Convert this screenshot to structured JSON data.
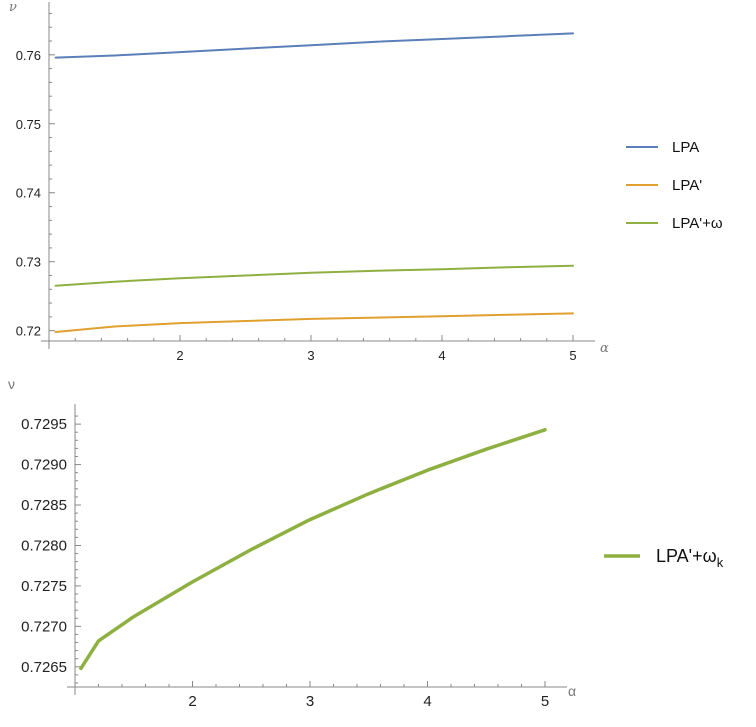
{
  "chart_data": [
    {
      "type": "line",
      "title": "",
      "xlabel": "α",
      "ylabel": "ν",
      "xlim": [
        1,
        5
      ],
      "ylim": [
        0.7185,
        0.7665
      ],
      "x_ticks": [
        2,
        3,
        4,
        5
      ],
      "x_tick_labels": [
        "2",
        "3",
        "4",
        "5"
      ],
      "y_ticks": [
        0.72,
        0.73,
        0.74,
        0.75,
        0.76
      ],
      "y_tick_labels": [
        "0.72",
        "0.73",
        "0.74",
        "0.75",
        "0.76"
      ],
      "legend_position": "right",
      "series": [
        {
          "name": "LPA",
          "color": "#5b7fb8",
          "x": [
            1.05,
            1.5,
            2,
            2.5,
            3,
            3.5,
            4,
            4.5,
            5
          ],
          "y": [
            0.7596,
            0.7599,
            0.7604,
            0.7609,
            0.7614,
            0.7619,
            0.7623,
            0.7627,
            0.7631
          ]
        },
        {
          "name": "LPA'",
          "color": "#e0a030",
          "x": [
            1.05,
            1.5,
            2,
            2.5,
            3,
            3.5,
            4,
            4.5,
            5
          ],
          "y": [
            0.7198,
            0.7206,
            0.7211,
            0.7214,
            0.7217,
            0.7219,
            0.7221,
            0.7223,
            0.7225
          ]
        },
        {
          "name": "LPA'+ω",
          "color": "#8db040",
          "x": [
            1.05,
            1.5,
            2,
            2.5,
            3,
            3.5,
            4,
            4.5,
            5
          ],
          "y": [
            0.7265,
            0.7271,
            0.7276,
            0.728,
            0.7284,
            0.7287,
            0.7289,
            0.7292,
            0.7294
          ]
        }
      ]
    },
    {
      "type": "line",
      "title": "",
      "xlabel": "α",
      "ylabel": "ν",
      "xlim": [
        1,
        5
      ],
      "ylim": [
        0.72625,
        0.72965
      ],
      "x_ticks": [
        2,
        3,
        4,
        5
      ],
      "x_tick_labels": [
        "2",
        "3",
        "4",
        "5"
      ],
      "y_ticks": [
        0.7265,
        0.727,
        0.7275,
        0.728,
        0.7285,
        0.729,
        0.7295
      ],
      "y_tick_labels": [
        "0.7265",
        "0.7270",
        "0.7275",
        "0.7280",
        "0.7285",
        "0.7290",
        "0.7295"
      ],
      "legend_position": "right",
      "series": [
        {
          "name": "LPA'+ω",
          "name_subscript": "k",
          "color": "#8db040",
          "x": [
            1.05,
            1.2,
            1.5,
            2,
            2.5,
            3,
            3.5,
            4,
            4.5,
            5
          ],
          "y": [
            0.72648,
            0.72682,
            0.72712,
            0.72755,
            0.72795,
            0.72832,
            0.72864,
            0.72893,
            0.72919,
            0.72943
          ]
        }
      ]
    }
  ]
}
